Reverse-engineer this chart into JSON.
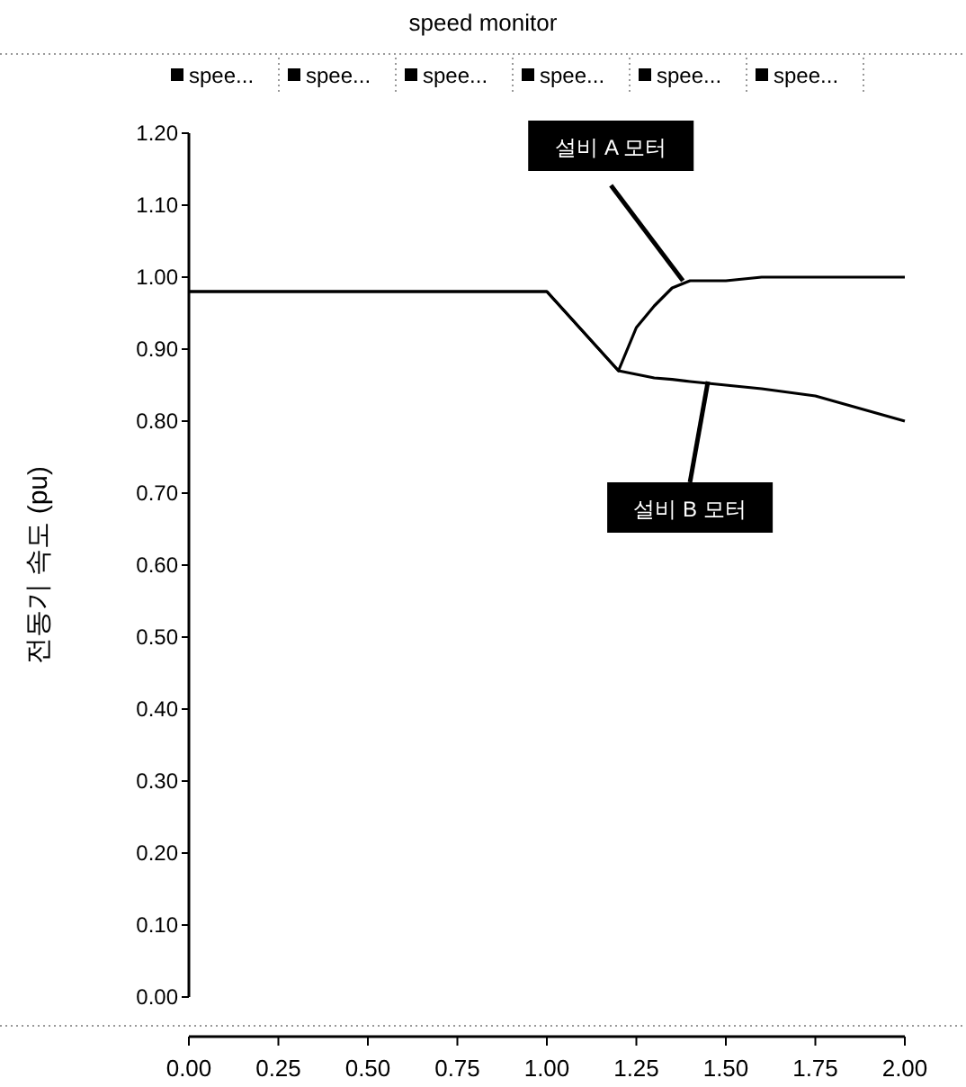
{
  "chart_data": {
    "type": "line",
    "title": "speed monitor",
    "ylabel": "전동기 속도 (pu)",
    "x": [
      0,
      0.25,
      0.5,
      0.75,
      1.0,
      1.2,
      1.25,
      1.3,
      1.35,
      1.4,
      1.5,
      1.6,
      1.75,
      2.0
    ],
    "series": [
      {
        "name": "spee...",
        "color": "#000000",
        "values": [
          0.98,
          0.98,
          0.98,
          0.98,
          0.98,
          0.87,
          0.93,
          0.96,
          0.985,
          0.995,
          0.995,
          1.0,
          1.0,
          1.0
        ]
      },
      {
        "name": "spee...",
        "color": "#000000",
        "values": [
          0.98,
          0.98,
          0.98,
          0.98,
          0.98,
          0.87,
          0.865,
          0.86,
          0.858,
          0.855,
          0.85,
          0.845,
          0.835,
          0.8
        ]
      }
    ],
    "annotations": [
      "spee...",
      "spee...",
      "spee...",
      "spee...",
      {
        "text": "설비 A 모터",
        "x": 1.38,
        "y": 0.995
      },
      {
        "text": "설비 B 모터",
        "x": 1.45,
        "y": 0.855
      }
    ],
    "xlim": [
      0,
      2
    ],
    "ylim": [
      0,
      1.2
    ],
    "xticks": [
      {
        "value": 0,
        "label": "0.00"
      },
      0.25,
      {
        "value": 0.5,
        "label": "0.50"
      },
      0.75,
      {
        "value": 1,
        "label": "1.00"
      },
      1.25,
      {
        "value": 1.5,
        "label": "1.50"
      },
      1.75,
      {
        "value": 2,
        "label": "2.00"
      }
    ],
    "yticks": [
      {
        "value": 0,
        "label": "0.00"
      },
      {
        "value": 0.1,
        "label": "0.10"
      },
      {
        "value": 0.2,
        "label": "0.20"
      },
      {
        "value": 0.3,
        "label": "0.30"
      },
      {
        "value": 0.4,
        "label": "0.40"
      },
      {
        "value": 0.5,
        "label": "0.50"
      },
      {
        "value": 0.6,
        "label": "0.60"
      },
      {
        "value": 0.7,
        "label": "0.70"
      },
      {
        "value": 0.8,
        "label": "0.80"
      },
      {
        "value": 0.9,
        "label": "0.90"
      },
      {
        "value": 1,
        "label": "1.00"
      },
      {
        "value": 1.1,
        "label": "1.10"
      },
      {
        "value": 1.2,
        "label": "1.20"
      }
    ],
    "grid": false,
    "legend": "top",
    "marker": "none",
    "line_style": "solid"
  }
}
